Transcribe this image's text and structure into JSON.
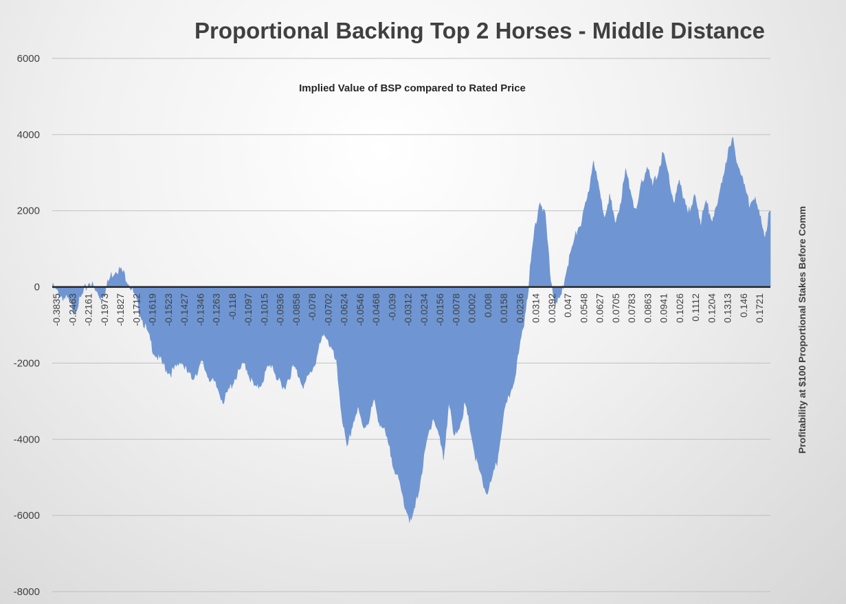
{
  "chart_data": {
    "type": "area",
    "title": "Proportional Backing Top 2 Horses - Middle Distance",
    "subtitle": "Implied Value of BSP compared to Rated Price",
    "xlabel": "",
    "ylabel": "Profitability at $100 Proportional Stakes Before Comm",
    "ylim": [
      -8000,
      6000
    ],
    "yticks": [
      6000,
      4000,
      2000,
      0,
      -2000,
      -4000,
      -6000,
      -8000
    ],
    "grid": true,
    "legend": "none",
    "colors": {
      "fill": "#6f96d2",
      "grid": "#bfbfbf",
      "axis": "#262626"
    },
    "x_tick_labels": [
      "-0.3835",
      "-0.2463",
      "-0.2161",
      "-0.1973",
      "-0.1827",
      "-0.1712",
      "-0.1619",
      "-0.1523",
      "-0.1427",
      "-0.1346",
      "-0.1263",
      "-0.118",
      "-0.1097",
      "-0.1015",
      "-0.0936",
      "-0.0858",
      "-0.078",
      "-0.0702",
      "-0.0624",
      "-0.0546",
      "-0.0468",
      "-0.039",
      "-0.0312",
      "-0.0234",
      "-0.0156",
      "-0.0078",
      "0.0002",
      "0.008",
      "0.0158",
      "0.0236",
      "0.0314",
      "0.0392",
      "0.047",
      "0.0548",
      "0.0627",
      "0.0705",
      "0.0783",
      "0.0863",
      "0.0941",
      "0.1026",
      "0.1112",
      "0.1204",
      "0.1313",
      "0.146",
      "0.1721"
    ],
    "series": [
      {
        "values": [
          0,
          -150,
          -250,
          -350,
          -600,
          -400,
          -100,
          150,
          -100,
          -250,
          -50,
          300,
          480,
          400,
          200,
          -100,
          -500,
          -900,
          -1300,
          -1700,
          -1900,
          -2100,
          -2250,
          -2150,
          -1900,
          -2200,
          -2400,
          -2200,
          -2000,
          -2300,
          -2500,
          -2700,
          -3000,
          -2700,
          -2400,
          -2200,
          -2000,
          -2400,
          -2700,
          -2500,
          -2200,
          -2000,
          -2400,
          -2700,
          -2400,
          -2100,
          -2300,
          -2600,
          -2300,
          -2000,
          -1500,
          -1200,
          -1600,
          -2000,
          -3300,
          -4300,
          -3600,
          -3200,
          -3700,
          -3500,
          -3000,
          -3500,
          -3800,
          -4300,
          -4800,
          -5300,
          -5800,
          -6200,
          -5600,
          -4800,
          -4000,
          -3400,
          -3800,
          -4500,
          -3000,
          -4000,
          -3600,
          -3100,
          -3700,
          -4500,
          -5000,
          -5400,
          -5100,
          -4600,
          -3500,
          -3000,
          -2500,
          -1800,
          -900,
          200,
          1500,
          2300,
          1800,
          200,
          -500,
          -200,
          500,
          1000,
          1500,
          1800,
          2400,
          3400,
          2500,
          1900,
          2400,
          1600,
          2200,
          3000,
          2500,
          1900,
          2700,
          3200,
          2600,
          3000,
          3500,
          2900,
          2200,
          2700,
          2300,
          1900,
          2400,
          1700,
          2200,
          1800,
          2000,
          2800,
          3500,
          3800,
          3200,
          2700,
          2200,
          2400,
          1800,
          1400,
          2000
        ]
      }
    ]
  }
}
